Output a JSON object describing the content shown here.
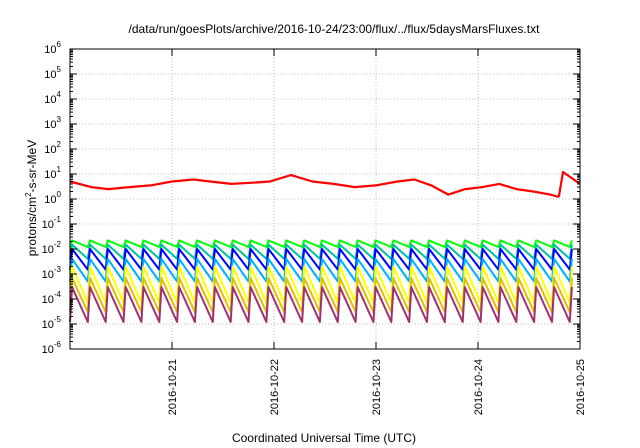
{
  "chart_data": {
    "type": "line",
    "title": "/data/run/goesPlots/archive/2016-10-24/23:00/flux/../flux/5daysMarsFluxes.txt",
    "xlabel": "Coordinated Universal Time (UTC)",
    "ylabel": {
      "prefix": "protons/cm",
      "sup": "2",
      "suffix": "-s-sr-MeV"
    },
    "yscale": "log",
    "ylim_exponents": [
      -6,
      6
    ],
    "y_tick_base": "10",
    "y_tick_exponents": [
      "-6",
      "-5",
      "-4",
      "-3",
      "-2",
      "-1",
      "0",
      "1",
      "2",
      "3",
      "4",
      "5",
      "6"
    ],
    "xlim": [
      "2016-10-20 00:00",
      "2016-10-25 00:00"
    ],
    "x_ticks": [
      "2016-10-21",
      "2016-10-22",
      "2016-10-23",
      "2016-10-24",
      "2016-10-25"
    ],
    "grid": true,
    "sawtooth_period_hours": 4.2,
    "series": [
      {
        "color": "#ff0000",
        "style": "segments",
        "segments": [
          {
            "x": [
              "2016-10-20 00:00",
              "2016-10-20 05:00",
              "2016-10-20 09:00",
              "2016-10-20 14:00",
              "2016-10-20 19:00",
              "2016-10-21 00:00",
              "2016-10-21 05:00",
              "2016-10-21 09:00",
              "2016-10-21 14:00",
              "2016-10-21 19:00",
              "2016-10-21 23:00",
              "2016-10-22 04:00",
              "2016-10-22 09:00",
              "2016-10-22 14:00",
              "2016-10-22 19:00",
              "2016-10-23 00:00",
              "2016-10-23 05:00",
              "2016-10-23 09:00",
              "2016-10-23 13:00",
              "2016-10-23 17:00",
              "2016-10-23 21:00",
              "2016-10-24 01:00",
              "2016-10-24 05:00",
              "2016-10-24 09:00",
              "2016-10-24 13:00",
              "2016-10-24 17:00",
              "2016-10-24 19:00"
            ],
            "y": [
              5,
              3,
              2.5,
              3,
              3.5,
              5,
              6,
              5,
              4,
              4.5,
              5,
              9,
              5,
              4,
              3,
              3.5,
              5,
              6,
              3.5,
              1.5,
              2.5,
              3,
              4,
              2.5,
              2,
              1.5,
              1.2
            ]
          },
          {
            "x": [
              "2016-10-24 19:00",
              "2016-10-24 20:00",
              "2016-10-25 00:00"
            ],
            "y": [
              1.2,
              12,
              4
            ]
          }
        ]
      },
      {
        "color": "#00ff00",
        "style": "sawtooth",
        "base": 0.012,
        "peak": 0.022
      },
      {
        "color": "#00c0a0",
        "style": "sawtooth",
        "base": 0.004,
        "peak": 0.015
      },
      {
        "color": "#0000ff",
        "style": "sawtooth",
        "base": 0.0015,
        "peak": 0.01
      },
      {
        "color": "#00b0ff",
        "style": "sawtooth",
        "base": 0.0005,
        "peak": 0.004
      },
      {
        "color": "#ffff00",
        "style": "sawtooth",
        "base": 7e-05,
        "peak": 0.002
      },
      {
        "color": "#e0c000",
        "style": "sawtooth",
        "base": 3e-05,
        "peak": 0.0007
      },
      {
        "color": "#a03070",
        "style": "sawtooth",
        "base": 1.2e-05,
        "peak": 0.0003
      }
    ]
  }
}
